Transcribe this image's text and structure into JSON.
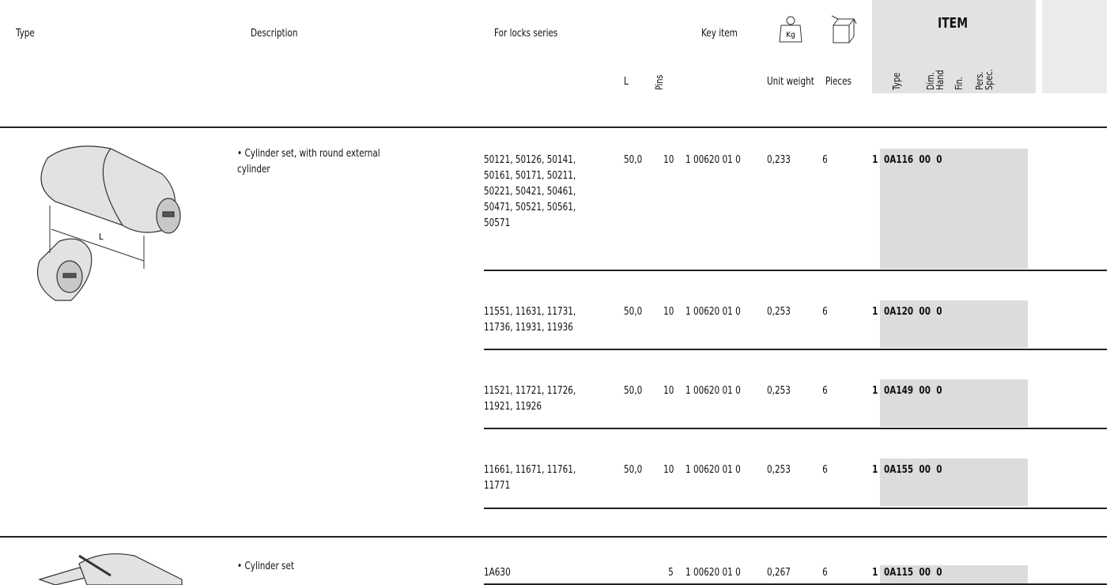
{
  "header": {
    "type": "Type",
    "description": "Description",
    "locks_series": "For locks series",
    "key_item": "Key item",
    "kg": "Kg",
    "l": "L",
    "pins": "Pins",
    "unit_weight": "Unit weight",
    "pieces": "Pieces",
    "item": "ITEM",
    "item_type": "Type",
    "dim": "Dim.",
    "hand": "Hand",
    "fin": "Fin.",
    "pers": "Pers.",
    "spec": "Spec.",
    "drawing_l": "L"
  },
  "products": [
    {
      "description": [
        "• Cylinder set, with round external",
        "cylinder"
      ],
      "rows": [
        {
          "locks": [
            "50121, 50126, 50141,",
            "50161, 50171, 50211,",
            "50221, 50421, 50461,",
            "50471, 50521, 50561,",
            "50571"
          ],
          "l": "50,0",
          "pins": "10",
          "key": "1 00620 01 0",
          "weight": "0,233",
          "pieces": "6",
          "prefix": "1",
          "item": "0A116  00  0"
        },
        {
          "locks": [
            "11551, 11631, 11731,",
            "11736, 11931, 11936"
          ],
          "l": "50,0",
          "pins": "10",
          "key": "1 00620 01 0",
          "weight": "0,253",
          "pieces": "6",
          "prefix": "1",
          "item": "0A120  00  0"
        },
        {
          "locks": [
            "11521, 11721, 11726,",
            "11921, 11926"
          ],
          "l": "50,0",
          "pins": "10",
          "key": "1 00620 01 0",
          "weight": "0,253",
          "pieces": "6",
          "prefix": "1",
          "item": "0A149  00  0"
        },
        {
          "locks": [
            "11661, 11671, 11761,",
            "11771"
          ],
          "l": "50,0",
          "pins": "10",
          "key": "1 00620 01 0",
          "weight": "0,253",
          "pieces": "6",
          "prefix": "1",
          "item": "0A155  00  0"
        }
      ]
    },
    {
      "description": [
        "• Cylinder set"
      ],
      "rows": [
        {
          "locks": [
            "1A630"
          ],
          "l": null,
          "pins": "5",
          "key": "1 00620 01 0",
          "weight": "0,267",
          "pieces": "6",
          "prefix": "1",
          "item": "0A115  00  0"
        }
      ]
    }
  ]
}
